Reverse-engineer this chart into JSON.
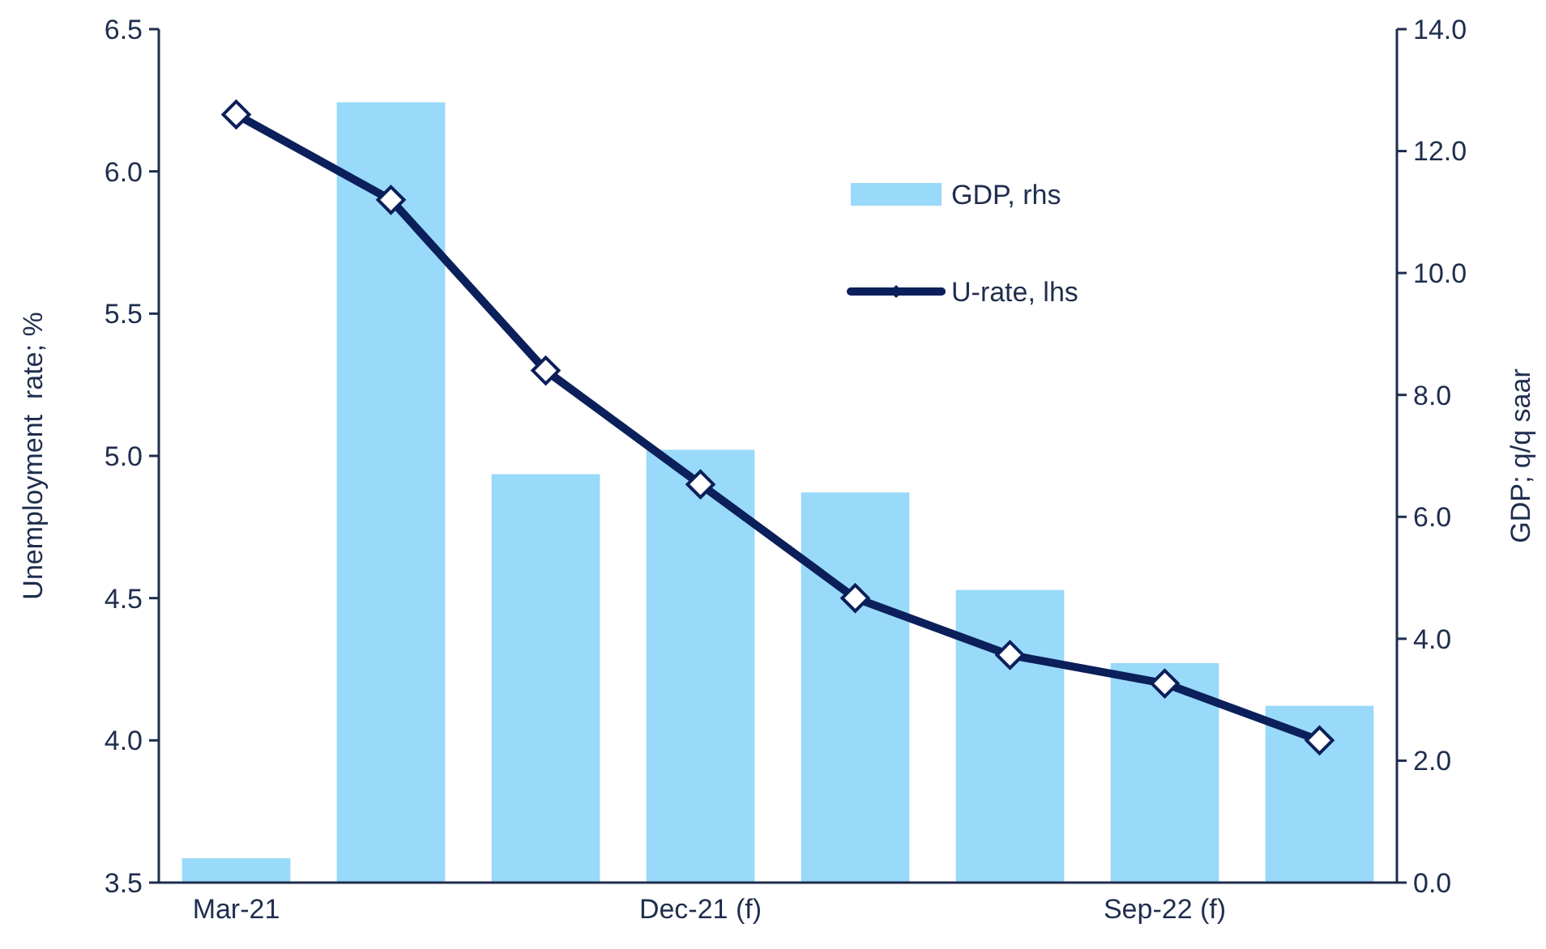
{
  "chart_data": {
    "type": "bar",
    "categories": [
      "Mar-21",
      null,
      null,
      "Dec-21 (f)",
      null,
      null,
      "Sep-22 (f)",
      null
    ],
    "series": [
      {
        "name": "GDP, rhs",
        "axis": "y2",
        "color": "#99d9f9",
        "values": [
          0.4,
          12.8,
          6.7,
          7.1,
          6.4,
          4.8,
          3.6,
          2.9
        ]
      },
      {
        "name": "U-rate, lhs",
        "type": "line",
        "axis": "y",
        "color": "#0b1f5a",
        "marker": "diamond",
        "line_style": "solid",
        "values": [
          6.2,
          5.9,
          5.3,
          4.9,
          4.5,
          4.3,
          4.2,
          4.0
        ]
      }
    ],
    "ylabel": "Unemployment  rate; %",
    "y2label": "GDP; q/q saar",
    "ylim": [
      3.5,
      6.5
    ],
    "yticks": [
      3.5,
      {
        "value": 4,
        "label": "4.0"
      },
      4.5,
      {
        "value": 5,
        "label": "5.0"
      },
      5.5,
      {
        "value": 6,
        "label": "6.0"
      },
      6.5
    ],
    "y2lim": [
      0,
      14
    ],
    "y2ticks": [
      {
        "value": 0,
        "label": "0.0"
      },
      {
        "value": 2,
        "label": "2.0"
      },
      {
        "value": 4,
        "label": "4.0"
      },
      {
        "value": 6,
        "label": "6.0"
      },
      {
        "value": 8,
        "label": "8.0"
      },
      {
        "value": 10,
        "label": "10.0"
      },
      {
        "value": 12,
        "label": "12.0"
      },
      {
        "value": 14,
        "label": "14.0"
      }
    ],
    "grid": false,
    "legend": "top right"
  }
}
